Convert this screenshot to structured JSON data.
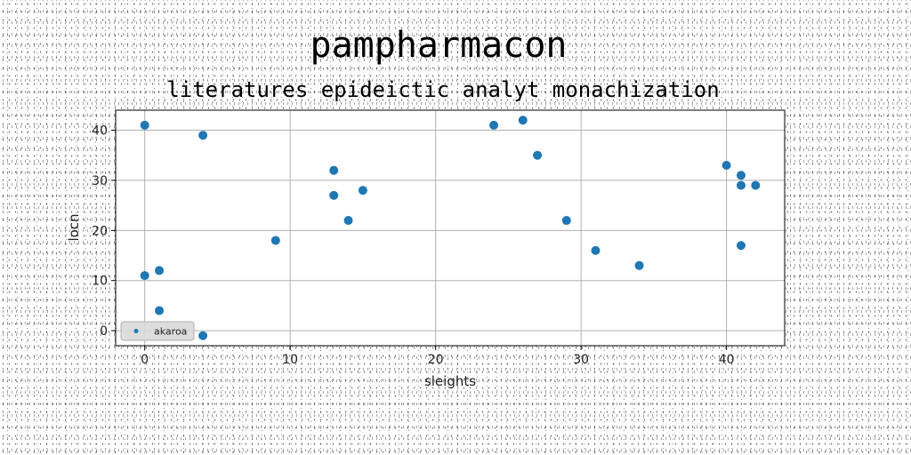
{
  "chart_data": {
    "type": "scatter",
    "title": "pampharmacon",
    "subtitle": "literatures epideictic analyt monachization",
    "xlabel": "sleights",
    "ylabel": "locn",
    "xlim": [
      -2,
      44
    ],
    "ylim": [
      -3,
      44
    ],
    "xticks": [
      0,
      10,
      20,
      30,
      40
    ],
    "yticks": [
      0,
      10,
      20,
      30,
      40
    ],
    "grid": true,
    "legend_position": "lower-left",
    "color": "#1f77b4",
    "series": [
      {
        "name": "akaroa",
        "points": [
          [
            0,
            41
          ],
          [
            4,
            39
          ],
          [
            0,
            11
          ],
          [
            1,
            12
          ],
          [
            1,
            4
          ],
          [
            4,
            -1
          ],
          [
            9,
            18
          ],
          [
            13,
            32
          ],
          [
            13,
            27
          ],
          [
            14,
            22
          ],
          [
            15,
            28
          ],
          [
            24,
            41
          ],
          [
            26,
            42
          ],
          [
            27,
            35
          ],
          [
            29,
            22
          ],
          [
            31,
            16
          ],
          [
            34,
            13
          ],
          [
            40,
            33
          ],
          [
            41,
            31
          ],
          [
            41,
            29
          ],
          [
            42,
            29
          ],
          [
            41,
            17
          ]
        ]
      }
    ]
  }
}
